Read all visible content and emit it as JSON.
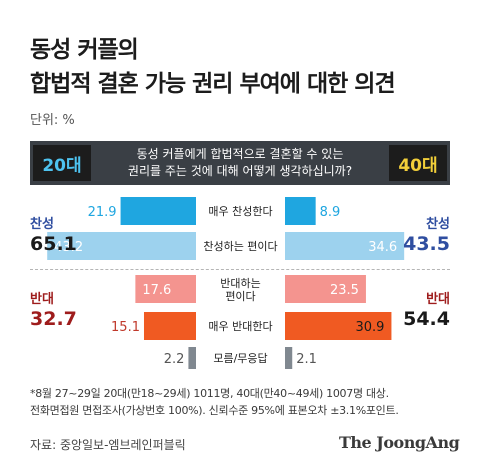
{
  "title_line1": "동성 커플의",
  "title_line2": "합법적 결혼 가능 권리 부여에 대한 의견",
  "unit": "단위: %",
  "header": {
    "left_age": "20대",
    "right_age": "40대",
    "question_line1": "동성 커플에게 합법적으로 결혼할 수 있는",
    "question_line2": "권리를 주는 것에 대해 어떻게 생각하십니까?"
  },
  "groups": {
    "left_agree_label": "찬성",
    "left_agree_value": "65.1",
    "right_agree_label": "찬성",
    "right_agree_value": "43.5",
    "left_oppose_label": "반대",
    "left_oppose_value": "32.7",
    "right_oppose_label": "반대",
    "right_oppose_value": "54.4"
  },
  "footnote_line1": "*8월 27~29일 20대(만18~29세) 1011명, 40대(만40~49세) 1007명 대상.",
  "footnote_line2": "전화면접원 면접조사(가상번호 100%). 신뢰수준 95%에 표본오차 ±3.1%포인트.",
  "source": "자료: 중앙일보-엠브레인퍼블릭",
  "brand": "The JoongAng",
  "colors": {
    "strong_agree": "#1fa6e0",
    "agree": "#9dd2ee",
    "oppose": "#f4948f",
    "strong_oppose": "#f05a22",
    "dont_know": "#808890",
    "agree_text": "#2f4ea0",
    "oppose_text": "#9e1c1c"
  },
  "chart_data": {
    "type": "bar",
    "categories": [
      "매우 찬성한다",
      "찬성하는 편이다",
      "반대하는 편이다",
      "매우 반대한다",
      "모름/무응답"
    ],
    "series": [
      {
        "name": "20대",
        "values": [
          21.9,
          43.2,
          17.6,
          15.1,
          2.2
        ]
      },
      {
        "name": "40대",
        "values": [
          8.9,
          34.6,
          23.5,
          30.9,
          2.1
        ]
      }
    ],
    "category_lines": [
      [
        "매우 찬성한다"
      ],
      [
        "찬성하는 편이다"
      ],
      [
        "반대하는",
        "편이다"
      ],
      [
        "매우 반대한다"
      ],
      [
        "모름/무응답"
      ]
    ],
    "value_labels_20": [
      "21.9",
      "43.2",
      "17.6",
      "15.1",
      "2.2"
    ],
    "value_labels_40": [
      "8.9",
      "34.6",
      "23.5",
      "30.9",
      "2.1"
    ],
    "orientation": "horizontal-butterfly",
    "xlim": [
      0,
      45
    ]
  }
}
